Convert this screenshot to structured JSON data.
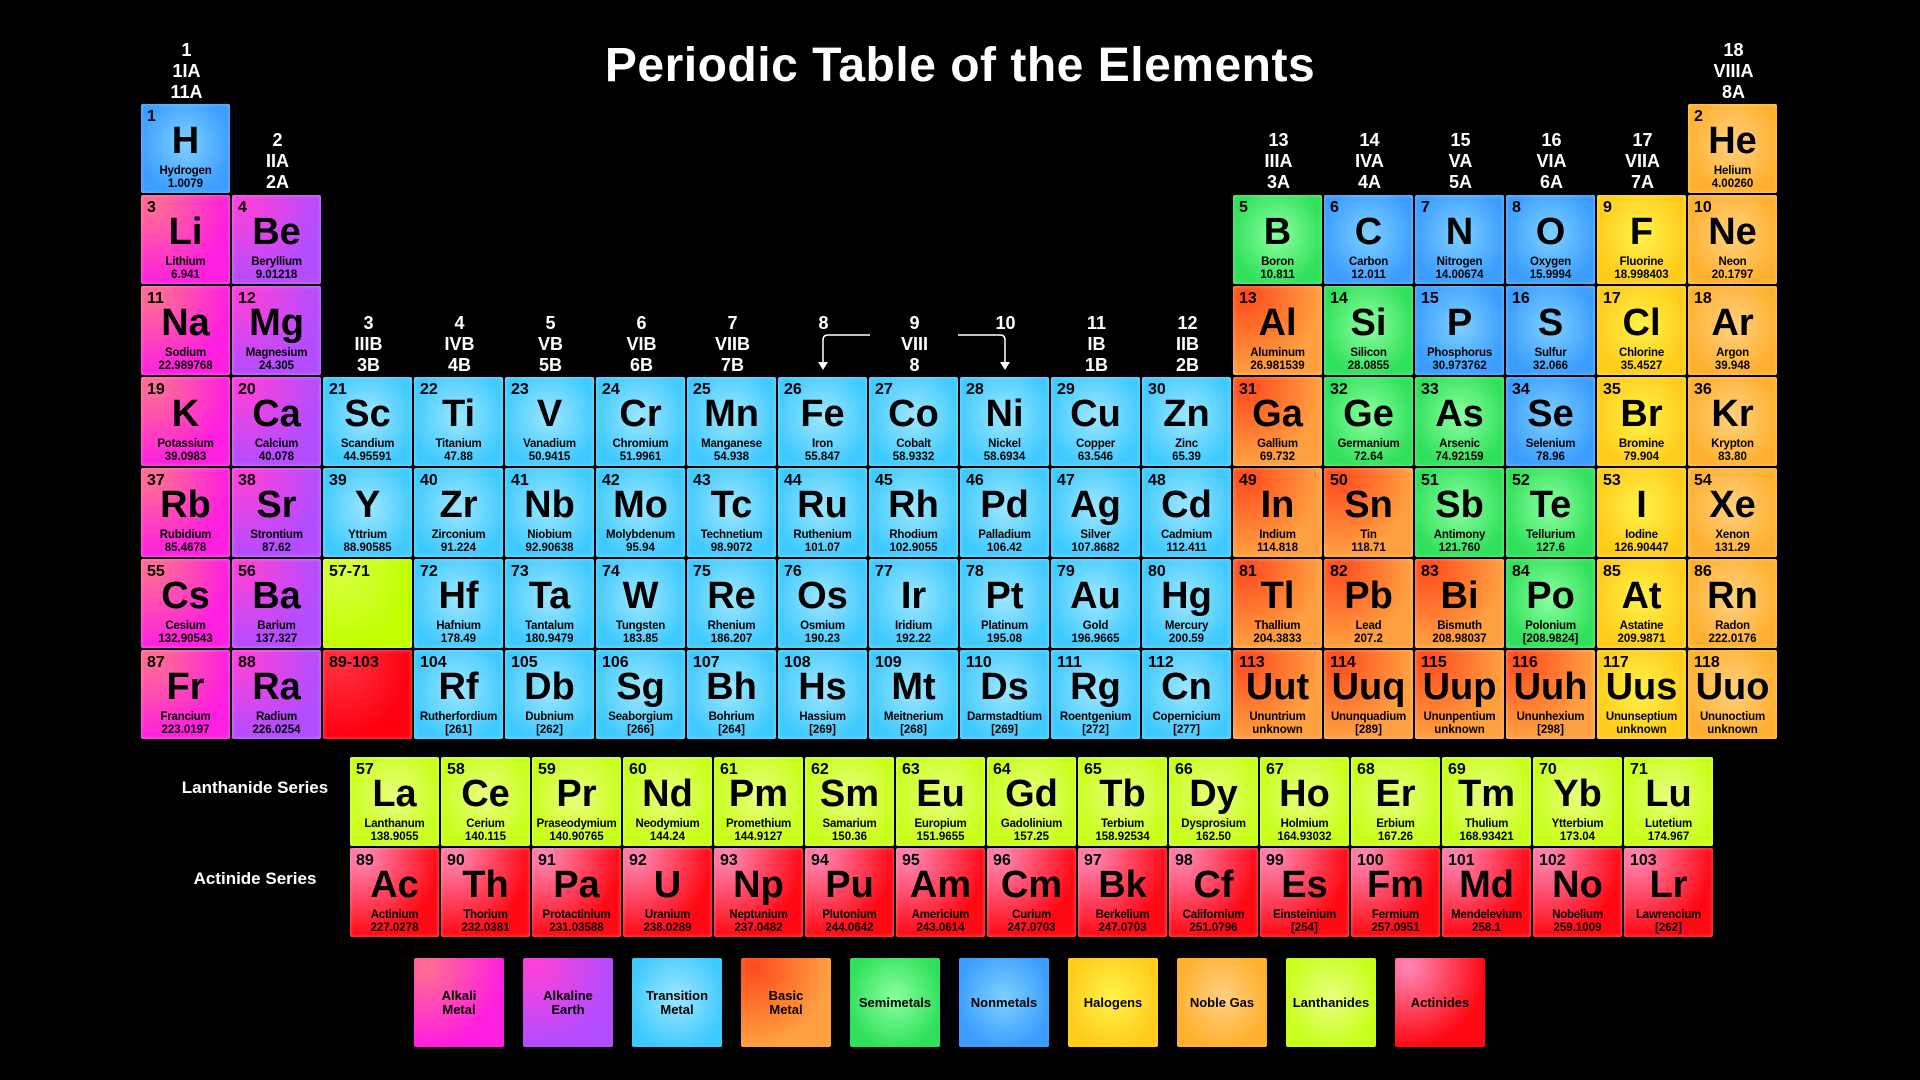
{
  "title": "Periodic Table of the Elements",
  "groups": [
    [
      "1",
      "1IA",
      "11A"
    ],
    [
      "2",
      "IIA",
      "2A"
    ],
    [
      "3",
      "IIIB",
      "3B"
    ],
    [
      "4",
      "IVB",
      "4B"
    ],
    [
      "5",
      "VB",
      "5B"
    ],
    [
      "6",
      "VIB",
      "6B"
    ],
    [
      "7",
      "VIIB",
      "7B"
    ],
    [
      "8"
    ],
    [
      "9",
      "VIII",
      "8"
    ],
    [
      "10"
    ],
    [
      "11",
      "IB",
      "1B"
    ],
    [
      "12",
      "IIB",
      "2B"
    ],
    [
      "13",
      "IIIA",
      "3A"
    ],
    [
      "14",
      "IVA",
      "4A"
    ],
    [
      "15",
      "VA",
      "5A"
    ],
    [
      "16",
      "VIA",
      "6A"
    ],
    [
      "17",
      "VIIA",
      "7A"
    ],
    [
      "18",
      "VIIIA",
      "8A"
    ]
  ],
  "placeholders": {
    "lanthanides": "57-71",
    "actinides": "89-103"
  },
  "series_labels": {
    "lanthanide": "Lanthanide Series",
    "actinide": "Actinide Series"
  },
  "categories": {
    "ak": {
      "label": "Alkali Metal",
      "color": "#ff1fe0",
      "glow": "#ff7090"
    },
    "ae": {
      "label": "Alkaline Earth",
      "color": "#b34dff",
      "glow": "#ff40d8"
    },
    "tm": {
      "label": "Transition Metal",
      "color": "#3fcaff",
      "glow": "#9fe6ff"
    },
    "bm": {
      "label": "Basic Metal",
      "color": "#ffa040",
      "glow": "#ff4a1e"
    },
    "sm": {
      "label": "Semimetals",
      "color": "#2fe05a",
      "glow": "#8cffa0"
    },
    "nm": {
      "label": "Nonmetals",
      "color": "#3a9dff",
      "glow": "#7fd0ff"
    },
    "ha": {
      "label": "Halogens",
      "color": "#ffcc1a",
      "glow": "#fff24a"
    },
    "ng": {
      "label": "Noble Gas",
      "color": "#ffb02e",
      "glow": "#ffd080"
    },
    "la": {
      "label": "Lanthanides",
      "color": "#c8ff1a",
      "glow": "#e8ff80"
    },
    "ac": {
      "label": "Actinides",
      "color": "#ff0a14",
      "glow": "#ff88b8"
    }
  },
  "legend_order": [
    "ak",
    "ae",
    "tm",
    "bm",
    "sm",
    "nm",
    "ha",
    "ng",
    "la",
    "ac"
  ],
  "elements": [
    [
      "1",
      "H",
      "Hydrogen",
      "1.0079",
      "nm"
    ],
    [
      "2",
      "He",
      "Helium",
      "4.00260",
      "ng"
    ],
    [
      "3",
      "Li",
      "Lithium",
      "6.941",
      "ak"
    ],
    [
      "4",
      "Be",
      "Beryllium",
      "9.01218",
      "ae"
    ],
    [
      "5",
      "B",
      "Boron",
      "10.811",
      "sm"
    ],
    [
      "6",
      "C",
      "Carbon",
      "12.011",
      "nm"
    ],
    [
      "7",
      "N",
      "Nitrogen",
      "14.00674",
      "nm"
    ],
    [
      "8",
      "O",
      "Oxygen",
      "15.9994",
      "nm"
    ],
    [
      "9",
      "F",
      "Fluorine",
      "18.998403",
      "ha"
    ],
    [
      "10",
      "Ne",
      "Neon",
      "20.1797",
      "ng"
    ],
    [
      "11",
      "Na",
      "Sodium",
      "22.989768",
      "ak"
    ],
    [
      "12",
      "Mg",
      "Magnesium",
      "24.305",
      "ae"
    ],
    [
      "13",
      "Al",
      "Aluminum",
      "26.981539",
      "bm"
    ],
    [
      "14",
      "Si",
      "Silicon",
      "28.0855",
      "sm"
    ],
    [
      "15",
      "P",
      "Phosphorus",
      "30.973762",
      "nm"
    ],
    [
      "16",
      "S",
      "Sulfur",
      "32.066",
      "nm"
    ],
    [
      "17",
      "Cl",
      "Chlorine",
      "35.4527",
      "ha"
    ],
    [
      "18",
      "Ar",
      "Argon",
      "39.948",
      "ng"
    ],
    [
      "19",
      "K",
      "Potassium",
      "39.0983",
      "ak"
    ],
    [
      "20",
      "Ca",
      "Calcium",
      "40.078",
      "ae"
    ],
    [
      "21",
      "Sc",
      "Scandium",
      "44.95591",
      "tm"
    ],
    [
      "22",
      "Ti",
      "Titanium",
      "47.88",
      "tm"
    ],
    [
      "23",
      "V",
      "Vanadium",
      "50.9415",
      "tm"
    ],
    [
      "24",
      "Cr",
      "Chromium",
      "51.9961",
      "tm"
    ],
    [
      "25",
      "Mn",
      "Manganese",
      "54.938",
      "tm"
    ],
    [
      "26",
      "Fe",
      "Iron",
      "55.847",
      "tm"
    ],
    [
      "27",
      "Co",
      "Cobalt",
      "58.9332",
      "tm"
    ],
    [
      "28",
      "Ni",
      "Nickel",
      "58.6934",
      "tm"
    ],
    [
      "29",
      "Cu",
      "Copper",
      "63.546",
      "tm"
    ],
    [
      "30",
      "Zn",
      "Zinc",
      "65.39",
      "tm"
    ],
    [
      "31",
      "Ga",
      "Gallium",
      "69.732",
      "bm"
    ],
    [
      "32",
      "Ge",
      "Germanium",
      "72.64",
      "sm"
    ],
    [
      "33",
      "As",
      "Arsenic",
      "74.92159",
      "sm"
    ],
    [
      "34",
      "Se",
      "Selenium",
      "78.96",
      "nm"
    ],
    [
      "35",
      "Br",
      "Bromine",
      "79.904",
      "ha"
    ],
    [
      "36",
      "Kr",
      "Krypton",
      "83.80",
      "ng"
    ],
    [
      "37",
      "Rb",
      "Rubidium",
      "85.4678",
      "ak"
    ],
    [
      "38",
      "Sr",
      "Strontium",
      "87.62",
      "ae"
    ],
    [
      "39",
      "Y",
      "Yttrium",
      "88.90585",
      "tm"
    ],
    [
      "40",
      "Zr",
      "Zirconium",
      "91.224",
      "tm"
    ],
    [
      "41",
      "Nb",
      "Niobium",
      "92.90638",
      "tm"
    ],
    [
      "42",
      "Mo",
      "Molybdenum",
      "95.94",
      "tm"
    ],
    [
      "43",
      "Tc",
      "Technetium",
      "98.9072",
      "tm"
    ],
    [
      "44",
      "Ru",
      "Ruthenium",
      "101.07",
      "tm"
    ],
    [
      "45",
      "Rh",
      "Rhodium",
      "102.9055",
      "tm"
    ],
    [
      "46",
      "Pd",
      "Palladium",
      "106.42",
      "tm"
    ],
    [
      "47",
      "Ag",
      "Silver",
      "107.8682",
      "tm"
    ],
    [
      "48",
      "Cd",
      "Cadmium",
      "112.411",
      "tm"
    ],
    [
      "49",
      "In",
      "Indium",
      "114.818",
      "bm"
    ],
    [
      "50",
      "Sn",
      "Tin",
      "118.71",
      "bm"
    ],
    [
      "51",
      "Sb",
      "Antimony",
      "121.760",
      "sm"
    ],
    [
      "52",
      "Te",
      "Tellurium",
      "127.6",
      "sm"
    ],
    [
      "53",
      "I",
      "Iodine",
      "126.90447",
      "ha"
    ],
    [
      "54",
      "Xe",
      "Xenon",
      "131.29",
      "ng"
    ],
    [
      "55",
      "Cs",
      "Cesium",
      "132.90543",
      "ak"
    ],
    [
      "56",
      "Ba",
      "Barium",
      "137.327",
      "ae"
    ],
    [
      "57",
      "La",
      "Lanthanum",
      "138.9055",
      "la"
    ],
    [
      "58",
      "Ce",
      "Cerium",
      "140.115",
      "la"
    ],
    [
      "59",
      "Pr",
      "Praseodymium",
      "140.90765",
      "la"
    ],
    [
      "60",
      "Nd",
      "Neodymium",
      "144.24",
      "la"
    ],
    [
      "61",
      "Pm",
      "Promethium",
      "144.9127",
      "la"
    ],
    [
      "62",
      "Sm",
      "Samarium",
      "150.36",
      "la"
    ],
    [
      "63",
      "Eu",
      "Europium",
      "151.9655",
      "la"
    ],
    [
      "64",
      "Gd",
      "Gadolinium",
      "157.25",
      "la"
    ],
    [
      "65",
      "Tb",
      "Terbium",
      "158.92534",
      "la"
    ],
    [
      "66",
      "Dy",
      "Dysprosium",
      "162.50",
      "la"
    ],
    [
      "67",
      "Ho",
      "Holmium",
      "164.93032",
      "la"
    ],
    [
      "68",
      "Er",
      "Erbium",
      "167.26",
      "la"
    ],
    [
      "69",
      "Tm",
      "Thulium",
      "168.93421",
      "la"
    ],
    [
      "70",
      "Yb",
      "Ytterbium",
      "173.04",
      "la"
    ],
    [
      "71",
      "Lu",
      "Lutetium",
      "174.967",
      "la"
    ],
    [
      "72",
      "Hf",
      "Hafnium",
      "178.49",
      "tm"
    ],
    [
      "73",
      "Ta",
      "Tantalum",
      "180.9479",
      "tm"
    ],
    [
      "74",
      "W",
      "Tungsten",
      "183.85",
      "tm"
    ],
    [
      "75",
      "Re",
      "Rhenium",
      "186.207",
      "tm"
    ],
    [
      "76",
      "Os",
      "Osmium",
      "190.23",
      "tm"
    ],
    [
      "77",
      "Ir",
      "Iridium",
      "192.22",
      "tm"
    ],
    [
      "78",
      "Pt",
      "Platinum",
      "195.08",
      "tm"
    ],
    [
      "79",
      "Au",
      "Gold",
      "196.9665",
      "tm"
    ],
    [
      "80",
      "Hg",
      "Mercury",
      "200.59",
      "tm"
    ],
    [
      "81",
      "Tl",
      "Thallium",
      "204.3833",
      "bm"
    ],
    [
      "82",
      "Pb",
      "Lead",
      "207.2",
      "bm"
    ],
    [
      "83",
      "Bi",
      "Bismuth",
      "208.98037",
      "bm"
    ],
    [
      "84",
      "Po",
      "Polonium",
      "[208.9824]",
      "sm"
    ],
    [
      "85",
      "At",
      "Astatine",
      "209.9871",
      "ha"
    ],
    [
      "86",
      "Rn",
      "Radon",
      "222.0176",
      "ng"
    ],
    [
      "87",
      "Fr",
      "Francium",
      "223.0197",
      "ak"
    ],
    [
      "88",
      "Ra",
      "Radium",
      "226.0254",
      "ae"
    ],
    [
      "89",
      "Ac",
      "Actinium",
      "227.0278",
      "ac"
    ],
    [
      "90",
      "Th",
      "Thorium",
      "232.0381",
      "ac"
    ],
    [
      "91",
      "Pa",
      "Protactinium",
      "231.03588",
      "ac"
    ],
    [
      "92",
      "U",
      "Uranium",
      "238.0289",
      "ac"
    ],
    [
      "93",
      "Np",
      "Neptunium",
      "237.0482",
      "ac"
    ],
    [
      "94",
      "Pu",
      "Plutonium",
      "244.0642",
      "ac"
    ],
    [
      "95",
      "Am",
      "Americium",
      "243.0614",
      "ac"
    ],
    [
      "96",
      "Cm",
      "Curium",
      "247.0703",
      "ac"
    ],
    [
      "97",
      "Bk",
      "Berkelium",
      "247.0703",
      "ac"
    ],
    [
      "98",
      "Cf",
      "Californium",
      "251.0796",
      "ac"
    ],
    [
      "99",
      "Es",
      "Einsteinium",
      "[254]",
      "ac"
    ],
    [
      "100",
      "Fm",
      "Fermium",
      "257.0951",
      "ac"
    ],
    [
      "101",
      "Md",
      "Mendelevium",
      "258.1",
      "ac"
    ],
    [
      "102",
      "No",
      "Nobelium",
      "259.1009",
      "ac"
    ],
    [
      "103",
      "Lr",
      "Lawrencium",
      "[262]",
      "ac"
    ],
    [
      "104",
      "Rf",
      "Rutherfordium",
      "[261]",
      "tm"
    ],
    [
      "105",
      "Db",
      "Dubnium",
      "[262]",
      "tm"
    ],
    [
      "106",
      "Sg",
      "Seaborgium",
      "[266]",
      "tm"
    ],
    [
      "107",
      "Bh",
      "Bohrium",
      "[264]",
      "tm"
    ],
    [
      "108",
      "Hs",
      "Hassium",
      "[269]",
      "tm"
    ],
    [
      "109",
      "Mt",
      "Meitnerium",
      "[268]",
      "tm"
    ],
    [
      "110",
      "Ds",
      "Darmstadtium",
      "[269]",
      "tm"
    ],
    [
      "111",
      "Rg",
      "Roentgenium",
      "[272]",
      "tm"
    ],
    [
      "112",
      "Cn",
      "Copernicium",
      "[277]",
      "tm"
    ],
    [
      "113",
      "Uut",
      "Ununtrium",
      "unknown",
      "bm"
    ],
    [
      "114",
      "Uuq",
      "Ununquadium",
      "[289]",
      "bm"
    ],
    [
      "115",
      "Uup",
      "Ununpentium",
      "unknown",
      "bm"
    ],
    [
      "116",
      "Uuh",
      "Ununhexium",
      "[298]",
      "bm"
    ],
    [
      "117",
      "Uus",
      "Ununseptium",
      "unknown",
      "ha"
    ],
    [
      "118",
      "Uuo",
      "Ununoctium",
      "unknown",
      "ng"
    ]
  ]
}
